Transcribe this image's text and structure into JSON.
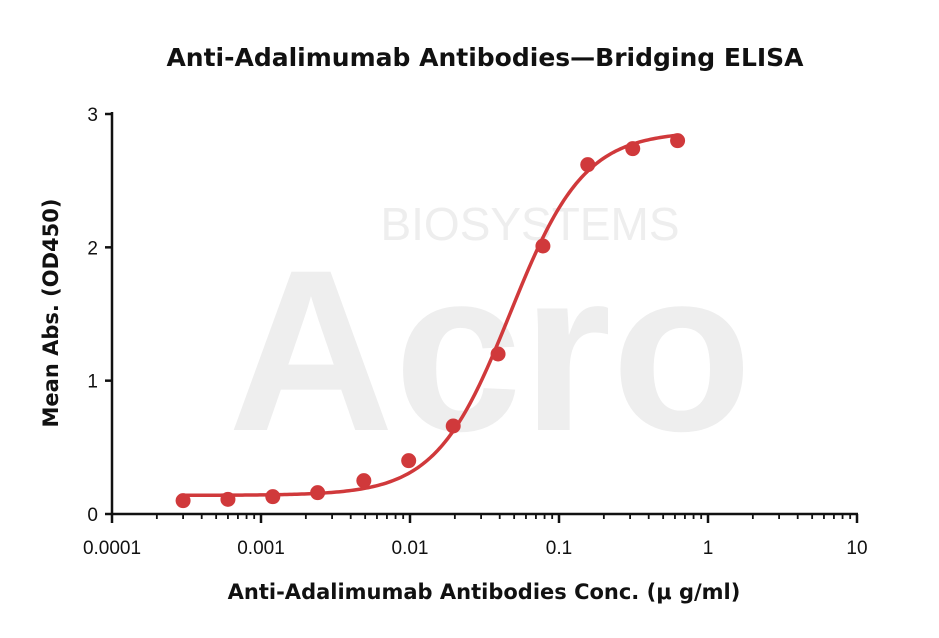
{
  "chart_data": {
    "type": "scatter",
    "title": "Anti-Adalimumab Antibodies—Bridging ELISA",
    "xlabel": "Anti-Adalimumab Antibodies Conc. (μ g/ml)",
    "ylabel": "Mean Abs. (OD450)",
    "xscale": "log",
    "xlim": [
      0.0001,
      10
    ],
    "ylim": [
      0,
      3
    ],
    "x_ticks": [
      {
        "value": 0.0001,
        "label": "0.0001"
      },
      {
        "value": 0.001,
        "label": "0.001"
      },
      {
        "value": 0.01,
        "label": "0.01"
      },
      {
        "value": 0.1,
        "label": "0.1"
      },
      {
        "value": 1,
        "label": "1"
      },
      {
        "value": 10,
        "label": "10"
      }
    ],
    "y_ticks": [
      {
        "value": 0,
        "label": "0"
      },
      {
        "value": 1,
        "label": "1"
      },
      {
        "value": 2,
        "label": "2"
      },
      {
        "value": 3,
        "label": "3"
      }
    ],
    "grid": false,
    "legend": "none",
    "color": "#d0393b",
    "series": [
      {
        "x": [
          0.0003,
          0.0006,
          0.0012,
          0.0024,
          0.0049,
          0.0098,
          0.0195,
          0.039,
          0.078,
          0.156,
          0.3125,
          0.625
        ],
        "y": [
          0.1,
          0.11,
          0.13,
          0.16,
          0.25,
          0.4,
          0.66,
          1.2,
          2.01,
          2.62,
          2.74,
          2.8
        ]
      }
    ],
    "fit_curve": {
      "model": "4PL",
      "bottom": 0.14,
      "top": 2.87,
      "ec50": 0.047,
      "hill": 1.75
    }
  },
  "watermark": {
    "line1": "BIOSYSTEMS",
    "line2": "Acro"
  }
}
